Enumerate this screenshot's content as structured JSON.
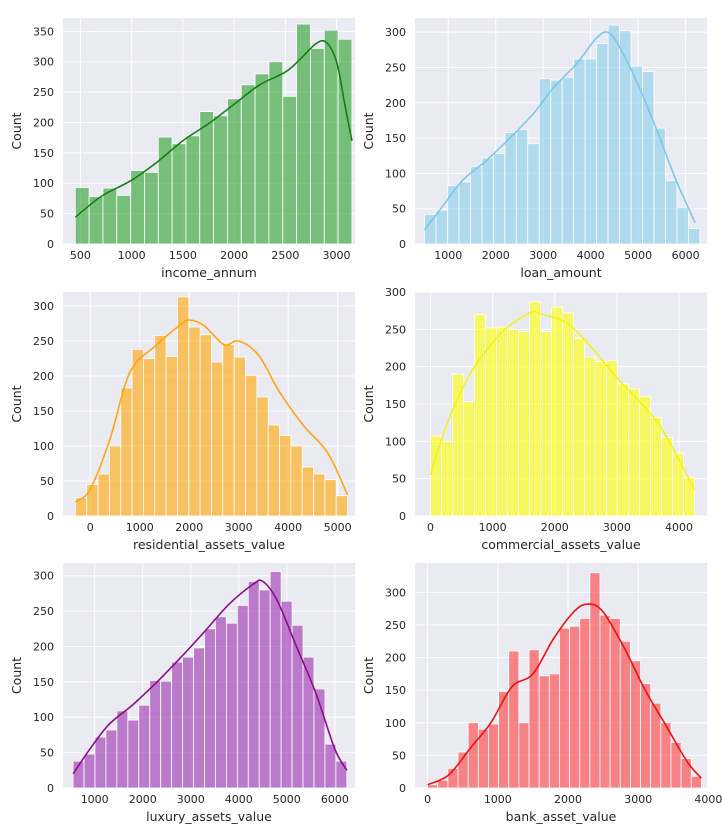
{
  "colors": {
    "background": "#eaeaf2",
    "grid": "#ffffff",
    "text": "#262626"
  },
  "chart_data": [
    {
      "type": "bar",
      "subtype": "histogram-with-kde",
      "xlabel": "income_annum",
      "ylabel": "Count",
      "color": "#2ca02c",
      "kde_color": "#138013",
      "xlim": [
        330,
        3180
      ],
      "ylim": [
        0,
        372
      ],
      "xticks": [
        500,
        1000,
        1500,
        2000,
        2500,
        3000
      ],
      "yticks": [
        0,
        50,
        100,
        150,
        200,
        250,
        300,
        350
      ],
      "bins": {
        "start": 450,
        "end": 3150,
        "counts": [
          93,
          78,
          92,
          80,
          121,
          118,
          176,
          165,
          178,
          218,
          211,
          239,
          262,
          280,
          300,
          243,
          362,
          322,
          352,
          337
        ]
      },
      "kde": [
        [
          450,
          44
        ],
        [
          700,
          78
        ],
        [
          1000,
          105
        ],
        [
          1250,
          135
        ],
        [
          1500,
          170
        ],
        [
          1750,
          198
        ],
        [
          2000,
          230
        ],
        [
          2250,
          262
        ],
        [
          2500,
          283
        ],
        [
          2650,
          305
        ],
        [
          2800,
          330
        ],
        [
          2900,
          332
        ],
        [
          3000,
          300
        ],
        [
          3080,
          230
        ],
        [
          3150,
          170
        ]
      ]
    },
    {
      "type": "bar",
      "subtype": "histogram-with-kde",
      "xlabel": "loan_amount",
      "ylabel": "Count",
      "color": "#87ceeb",
      "kde_color": "#7cc7ea",
      "xlim": [
        300,
        6450
      ],
      "ylim": [
        0,
        320
      ],
      "xticks": [
        1000,
        2000,
        3000,
        4000,
        5000,
        6000
      ],
      "yticks": [
        0,
        50,
        100,
        150,
        200,
        250,
        300
      ],
      "bins": {
        "start": 500,
        "end": 6300,
        "counts": [
          42,
          48,
          83,
          88,
          110,
          122,
          128,
          158,
          162,
          142,
          234,
          232,
          236,
          262,
          262,
          284,
          310,
          302,
          252,
          244,
          164,
          90,
          52,
          22
        ]
      },
      "kde": [
        [
          500,
          20
        ],
        [
          900,
          55
        ],
        [
          1300,
          90
        ],
        [
          1800,
          118
        ],
        [
          2300,
          150
        ],
        [
          2800,
          185
        ],
        [
          3200,
          220
        ],
        [
          3700,
          255
        ],
        [
          4100,
          290
        ],
        [
          4350,
          300
        ],
        [
          4600,
          280
        ],
        [
          5000,
          225
        ],
        [
          5400,
          160
        ],
        [
          5800,
          90
        ],
        [
          6200,
          30
        ]
      ]
    },
    {
      "type": "bar",
      "subtype": "histogram-with-kde",
      "xlabel": "residential_assets_value",
      "ylabel": "Count",
      "color": "#ffa500",
      "kde_color": "#ffa50f",
      "xlim": [
        -550,
        5350
      ],
      "ylim": [
        0,
        320
      ],
      "xticks": [
        0,
        1000,
        2000,
        3000,
        4000,
        5000
      ],
      "yticks": [
        0,
        50,
        100,
        150,
        200,
        250,
        300
      ],
      "bins": {
        "start": -300,
        "end": 5200,
        "counts": [
          26,
          45,
          60,
          100,
          183,
          238,
          225,
          258,
          228,
          313,
          270,
          259,
          220,
          245,
          227,
          201,
          170,
          130,
          115,
          100,
          70,
          60,
          52,
          29
        ]
      },
      "kde": [
        [
          -300,
          20
        ],
        [
          0,
          38
        ],
        [
          400,
          110
        ],
        [
          800,
          205
        ],
        [
          1300,
          242
        ],
        [
          1800,
          272
        ],
        [
          2000,
          280
        ],
        [
          2300,
          272
        ],
        [
          2700,
          245
        ],
        [
          3000,
          250
        ],
        [
          3400,
          230
        ],
        [
          3800,
          180
        ],
        [
          4300,
          130
        ],
        [
          4800,
          90
        ],
        [
          5200,
          30
        ]
      ]
    },
    {
      "type": "bar",
      "subtype": "histogram-with-kde",
      "xlabel": "commercial_assets_value",
      "ylabel": "Count",
      "color": "#ffff00",
      "kde_color": "#f2f21a",
      "xlim": [
        -250,
        4450
      ],
      "ylim": [
        0,
        300
      ],
      "xticks": [
        0,
        1000,
        2000,
        3000,
        4000
      ],
      "yticks": [
        0,
        50,
        100,
        150,
        200,
        250,
        300
      ],
      "bins": {
        "start": 0,
        "end": 4250,
        "counts": [
          107,
          100,
          190,
          153,
          270,
          252,
          253,
          250,
          247,
          287,
          247,
          280,
          272,
          238,
          213,
          207,
          208,
          177,
          170,
          160,
          132,
          105,
          84,
          52
        ]
      },
      "kde": [
        [
          0,
          55
        ],
        [
          250,
          120
        ],
        [
          600,
          185
        ],
        [
          900,
          222
        ],
        [
          1200,
          250
        ],
        [
          1600,
          272
        ],
        [
          1800,
          270
        ],
        [
          2200,
          258
        ],
        [
          2600,
          225
        ],
        [
          3000,
          185
        ],
        [
          3400,
          150
        ],
        [
          3700,
          120
        ],
        [
          4000,
          75
        ],
        [
          4250,
          35
        ]
      ]
    },
    {
      "type": "bar",
      "subtype": "histogram-with-kde",
      "xlabel": "luxury_assets_value",
      "ylabel": "Count",
      "color": "#9b2fae",
      "kde_color": "#8b0d8b",
      "xlim": [
        340,
        6420
      ],
      "ylim": [
        0,
        318
      ],
      "xticks": [
        1000,
        2000,
        3000,
        4000,
        5000,
        6000
      ],
      "yticks": [
        0,
        50,
        100,
        150,
        200,
        250,
        300
      ],
      "bins": {
        "start": 550,
        "end": 6250,
        "counts": [
          38,
          48,
          72,
          82,
          109,
          96,
          117,
          152,
          151,
          178,
          185,
          198,
          225,
          242,
          233,
          258,
          292,
          280,
          306,
          264,
          230,
          185,
          140,
          62,
          38
        ]
      },
      "kde": [
        [
          550,
          20
        ],
        [
          900,
          55
        ],
        [
          1300,
          90
        ],
        [
          1800,
          118
        ],
        [
          2300,
          150
        ],
        [
          2800,
          185
        ],
        [
          3300,
          222
        ],
        [
          3800,
          260
        ],
        [
          4300,
          288
        ],
        [
          4500,
          292
        ],
        [
          4800,
          265
        ],
        [
          5200,
          200
        ],
        [
          5600,
          135
        ],
        [
          6000,
          55
        ],
        [
          6250,
          25
        ]
      ]
    },
    {
      "type": "bar",
      "subtype": "histogram-with-kde",
      "xlabel": "bank_asset_value",
      "ylabel": "Count",
      "color": "#ff3b3b",
      "kde_color": "#ee1111",
      "xlim": [
        -180,
        3980
      ],
      "ylim": [
        0,
        345
      ],
      "xticks": [
        0,
        1000,
        2000,
        3000,
        4000
      ],
      "yticks": [
        0,
        50,
        100,
        150,
        200,
        250,
        300
      ],
      "bins": {
        "start": 0,
        "end": 3900,
        "counts": [
          5,
          12,
          30,
          55,
          100,
          90,
          98,
          148,
          210,
          100,
          212,
          172,
          175,
          245,
          248,
          260,
          330,
          265,
          260,
          225,
          195,
          160,
          130,
          100,
          70,
          45,
          18
        ]
      },
      "kde": [
        [
          0,
          5
        ],
        [
          300,
          20
        ],
        [
          600,
          60
        ],
        [
          900,
          100
        ],
        [
          1200,
          155
        ],
        [
          1500,
          175
        ],
        [
          1800,
          230
        ],
        [
          2100,
          272
        ],
        [
          2300,
          282
        ],
        [
          2500,
          270
        ],
        [
          2800,
          215
        ],
        [
          3100,
          150
        ],
        [
          3400,
          95
        ],
        [
          3700,
          40
        ],
        [
          3900,
          15
        ]
      ]
    }
  ]
}
